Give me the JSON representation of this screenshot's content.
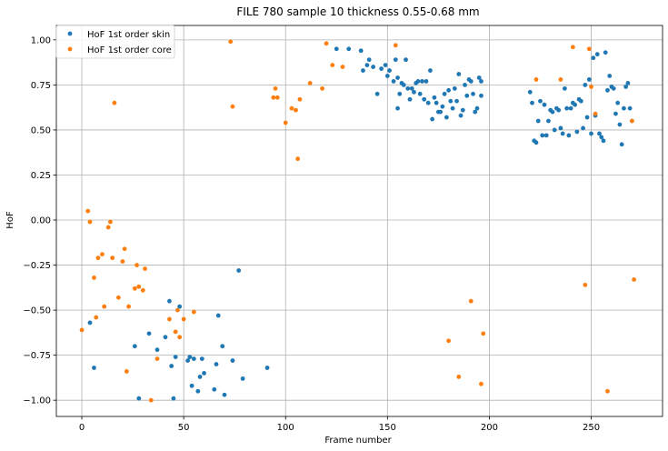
{
  "chart_data": {
    "type": "scatter",
    "title": "FILE 780 sample 10 thickness 0.55-0.68 mm",
    "xlabel": "Frame number",
    "ylabel": "HoF",
    "xlim": [
      -12.5,
      285
    ],
    "ylim": [
      -1.09,
      1.08
    ],
    "xticks": [
      0,
      50,
      100,
      150,
      200,
      250
    ],
    "yticks": [
      -1.0,
      -0.75,
      -0.5,
      -0.25,
      0.0,
      0.25,
      0.5,
      0.75,
      1.0
    ],
    "ytick_labels": [
      "−1.00",
      "−0.75",
      "−0.50",
      "−0.25",
      "0.00",
      "0.25",
      "0.50",
      "0.75",
      "1.00"
    ],
    "grid": true,
    "legend_position": "top-left",
    "series": [
      {
        "name": "HoF 1st order skin",
        "color": "#1f77b4",
        "points": [
          [
            4,
            -0.57
          ],
          [
            6,
            -0.82
          ],
          [
            26,
            -0.7
          ],
          [
            28,
            -0.99
          ],
          [
            33,
            -0.63
          ],
          [
            37,
            -0.72
          ],
          [
            41,
            -0.65
          ],
          [
            43,
            -0.45
          ],
          [
            44,
            -0.81
          ],
          [
            45,
            -0.99
          ],
          [
            46,
            -0.76
          ],
          [
            48,
            -0.48
          ],
          [
            52,
            -0.78
          ],
          [
            53,
            -0.76
          ],
          [
            54,
            -0.92
          ],
          [
            55,
            -0.77
          ],
          [
            57,
            -0.95
          ],
          [
            58,
            -0.87
          ],
          [
            59,
            -0.77
          ],
          [
            60,
            -0.85
          ],
          [
            65,
            -0.94
          ],
          [
            66,
            -0.8
          ],
          [
            67,
            -0.53
          ],
          [
            69,
            -0.7
          ],
          [
            70,
            -0.97
          ],
          [
            74,
            -0.78
          ],
          [
            77,
            -0.28
          ],
          [
            79,
            -0.88
          ],
          [
            91,
            -0.82
          ],
          [
            125,
            0.95
          ],
          [
            131,
            0.95
          ],
          [
            137,
            0.94
          ],
          [
            138,
            0.83
          ],
          [
            140,
            0.86
          ],
          [
            141,
            0.89
          ],
          [
            143,
            0.85
          ],
          [
            145,
            0.7
          ],
          [
            147,
            0.84
          ],
          [
            149,
            0.86
          ],
          [
            150,
            0.8
          ],
          [
            151,
            0.83
          ],
          [
            153,
            0.77
          ],
          [
            154,
            0.89
          ],
          [
            155,
            0.79
          ],
          [
            155,
            0.62
          ],
          [
            156,
            0.7
          ],
          [
            157,
            0.76
          ],
          [
            158,
            0.75
          ],
          [
            159,
            0.89
          ],
          [
            160,
            0.73
          ],
          [
            161,
            0.67
          ],
          [
            162,
            0.73
          ],
          [
            163,
            0.71
          ],
          [
            164,
            0.76
          ],
          [
            165,
            0.77
          ],
          [
            166,
            0.7
          ],
          [
            167,
            0.77
          ],
          [
            168,
            0.67
          ],
          [
            169,
            0.77
          ],
          [
            170,
            0.65
          ],
          [
            171,
            0.83
          ],
          [
            172,
            0.56
          ],
          [
            173,
            0.68
          ],
          [
            174,
            0.65
          ],
          [
            175,
            0.6
          ],
          [
            176,
            0.6
          ],
          [
            177,
            0.63
          ],
          [
            178,
            0.7
          ],
          [
            179,
            0.57
          ],
          [
            180,
            0.72
          ],
          [
            181,
            0.66
          ],
          [
            182,
            0.62
          ],
          [
            183,
            0.73
          ],
          [
            184,
            0.66
          ],
          [
            185,
            0.81
          ],
          [
            186,
            0.58
          ],
          [
            187,
            0.61
          ],
          [
            188,
            0.75
          ],
          [
            189,
            0.69
          ],
          [
            190,
            0.78
          ],
          [
            191,
            0.77
          ],
          [
            192,
            0.7
          ],
          [
            193,
            0.6
          ],
          [
            194,
            0.62
          ],
          [
            195,
            0.79
          ],
          [
            196,
            0.77
          ],
          [
            196,
            0.69
          ],
          [
            220,
            0.71
          ],
          [
            221,
            0.65
          ],
          [
            222,
            0.44
          ],
          [
            223,
            0.43
          ],
          [
            224,
            0.55
          ],
          [
            225,
            0.66
          ],
          [
            226,
            0.47
          ],
          [
            227,
            0.64
          ],
          [
            228,
            0.47
          ],
          [
            229,
            0.55
          ],
          [
            230,
            0.61
          ],
          [
            231,
            0.6
          ],
          [
            232,
            0.5
          ],
          [
            233,
            0.62
          ],
          [
            234,
            0.61
          ],
          [
            235,
            0.51
          ],
          [
            236,
            0.48
          ],
          [
            237,
            0.73
          ],
          [
            238,
            0.62
          ],
          [
            239,
            0.47
          ],
          [
            240,
            0.62
          ],
          [
            241,
            0.65
          ],
          [
            242,
            0.64
          ],
          [
            243,
            0.49
          ],
          [
            244,
            0.67
          ],
          [
            245,
            0.66
          ],
          [
            246,
            0.51
          ],
          [
            247,
            0.75
          ],
          [
            248,
            0.57
          ],
          [
            249,
            0.78
          ],
          [
            250,
            0.48
          ],
          [
            251,
            0.9
          ],
          [
            252,
            0.58
          ],
          [
            253,
            0.92
          ],
          [
            254,
            0.48
          ],
          [
            255,
            0.46
          ],
          [
            256,
            0.44
          ],
          [
            257,
            0.93
          ],
          [
            258,
            0.72
          ],
          [
            259,
            0.8
          ],
          [
            260,
            0.74
          ],
          [
            261,
            0.73
          ],
          [
            262,
            0.59
          ],
          [
            263,
            0.65
          ],
          [
            264,
            0.53
          ],
          [
            265,
            0.42
          ],
          [
            266,
            0.62
          ],
          [
            267,
            0.74
          ],
          [
            268,
            0.76
          ],
          [
            269,
            0.62
          ],
          [
            270,
            0.55
          ]
        ]
      },
      {
        "name": "HoF 1st order core",
        "color": "#ff7f0e",
        "points": [
          [
            0,
            -0.61
          ],
          [
            3,
            0.05
          ],
          [
            4,
            -0.01
          ],
          [
            6,
            -0.32
          ],
          [
            7,
            -0.54
          ],
          [
            8,
            -0.21
          ],
          [
            10,
            -0.19
          ],
          [
            11,
            -0.48
          ],
          [
            13,
            -0.04
          ],
          [
            14,
            -0.01
          ],
          [
            15,
            -0.21
          ],
          [
            16,
            0.65
          ],
          [
            18,
            -0.43
          ],
          [
            20,
            -0.23
          ],
          [
            21,
            -0.16
          ],
          [
            22,
            -0.84
          ],
          [
            23,
            -0.48
          ],
          [
            26,
            -0.38
          ],
          [
            27,
            -0.25
          ],
          [
            28,
            -0.37
          ],
          [
            30,
            -0.39
          ],
          [
            31,
            -0.27
          ],
          [
            34,
            -1.0
          ],
          [
            37,
            -0.77
          ],
          [
            43,
            -0.55
          ],
          [
            46,
            -0.62
          ],
          [
            47,
            -0.5
          ],
          [
            48,
            -0.65
          ],
          [
            50,
            -0.55
          ],
          [
            55,
            -0.51
          ],
          [
            73,
            0.99
          ],
          [
            74,
            0.63
          ],
          [
            94,
            0.68
          ],
          [
            95,
            0.73
          ],
          [
            96,
            0.68
          ],
          [
            100,
            0.54
          ],
          [
            103,
            0.62
          ],
          [
            105,
            0.61
          ],
          [
            106,
            0.34
          ],
          [
            107,
            0.67
          ],
          [
            112,
            0.76
          ],
          [
            118,
            0.73
          ],
          [
            120,
            0.98
          ],
          [
            123,
            0.86
          ],
          [
            128,
            0.85
          ],
          [
            154,
            0.97
          ],
          [
            180,
            -0.67
          ],
          [
            185,
            -0.87
          ],
          [
            191,
            -0.45
          ],
          [
            196,
            -0.91
          ],
          [
            197,
            -0.63
          ],
          [
            223,
            0.78
          ],
          [
            235,
            0.78
          ],
          [
            241,
            0.96
          ],
          [
            247,
            -0.36
          ],
          [
            249,
            0.95
          ],
          [
            250,
            0.74
          ],
          [
            252,
            0.59
          ],
          [
            258,
            -0.95
          ],
          [
            270,
            0.55
          ],
          [
            271,
            -0.33
          ]
        ]
      }
    ]
  }
}
